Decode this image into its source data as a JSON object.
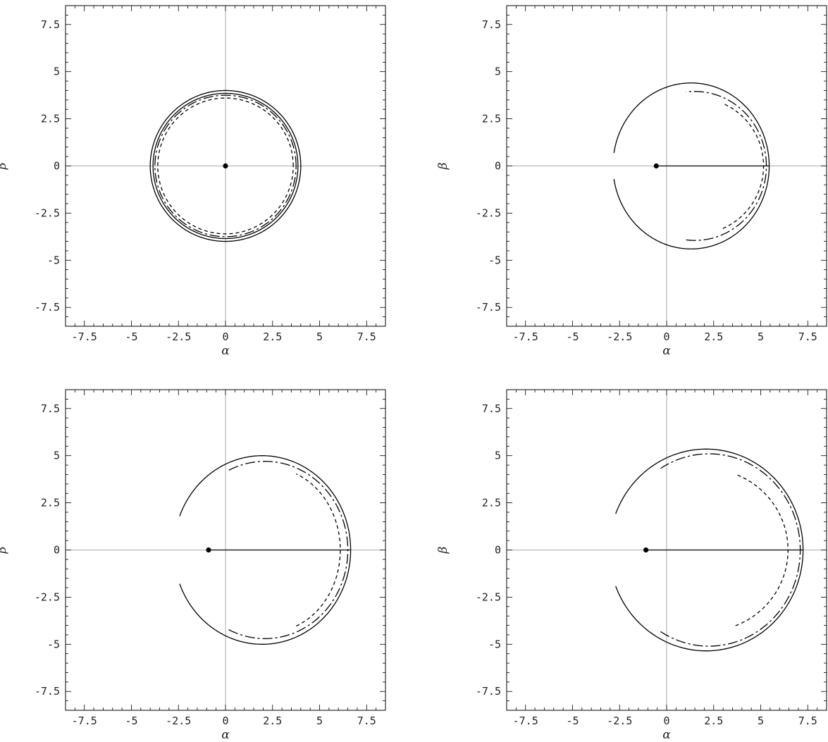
{
  "chart_data": [
    {
      "type": "line",
      "xlabel": "α",
      "ylabel": "β",
      "xlim": [
        -8.5,
        8.5
      ],
      "ylim": [
        -8.5,
        8.5
      ],
      "xticks": [
        "-7.5",
        "-5",
        "-2.5",
        "0",
        "2.5",
        "5",
        "7.5"
      ],
      "yticks": [
        "7.5",
        "5",
        "2.5",
        "0",
        "-2.5",
        "-5",
        "-7.5"
      ],
      "point": [
        0,
        0
      ],
      "segment": null,
      "series": [
        {
          "style": "solid",
          "center": [
            0,
            0
          ],
          "rx": 4.0,
          "ry": 4.0,
          "angles": [
            0,
            360
          ]
        },
        {
          "style": "solid",
          "center": [
            0,
            0
          ],
          "rx": 3.85,
          "ry": 3.85,
          "angles": [
            0,
            360
          ]
        },
        {
          "style": "dash-dot",
          "center": [
            0,
            0
          ],
          "rx": 3.75,
          "ry": 3.75,
          "angles": [
            0,
            360
          ]
        },
        {
          "style": "dashed",
          "center": [
            0,
            0
          ],
          "rx": 3.6,
          "ry": 3.6,
          "angles": [
            0,
            360
          ]
        }
      ]
    },
    {
      "type": "line",
      "xlabel": "α",
      "ylabel": "β",
      "xlim": [
        -8.5,
        8.5
      ],
      "ylim": [
        -8.5,
        8.5
      ],
      "xticks": [
        "-7.5",
        "-5",
        "-2.5",
        "0",
        "2.5",
        "5",
        "7.5"
      ],
      "yticks": [
        "7.5",
        "5",
        "2.5",
        "0",
        "-2.5",
        "-5",
        "-7.5"
      ],
      "point": [
        -0.55,
        0
      ],
      "segment": [
        -0.55,
        5.45
      ],
      "series": [
        {
          "style": "solid",
          "center": [
            1.3,
            0
          ],
          "rx": 4.15,
          "ry": 4.4,
          "angles": [
            -171,
            171
          ]
        },
        {
          "style": "dash-dot",
          "center": [
            1.5,
            0
          ],
          "rx": 3.8,
          "ry": 3.95,
          "angles": [
            -97,
            97
          ]
        },
        {
          "style": "dashed",
          "center": [
            1.6,
            0
          ],
          "rx": 3.55,
          "ry": 3.6,
          "angles": [
            -67,
            67
          ]
        }
      ]
    },
    {
      "type": "line",
      "xlabel": "α",
      "ylabel": "β",
      "xlim": [
        -8.5,
        8.5
      ],
      "ylim": [
        -8.5,
        8.5
      ],
      "xticks": [
        "-7.5",
        "-5",
        "-2.5",
        "0",
        "2.5",
        "5",
        "7.5"
      ],
      "yticks": [
        "7.5",
        "5",
        "2.5",
        "0",
        "-2.5",
        "-5",
        "-7.5"
      ],
      "point": [
        -0.9,
        0
      ],
      "segment": [
        -0.9,
        6.65
      ],
      "series": [
        {
          "style": "solid",
          "center": [
            1.95,
            0
          ],
          "rx": 4.7,
          "ry": 5.0,
          "angles": [
            -159,
            159
          ]
        },
        {
          "style": "dash-dot",
          "center": [
            2.1,
            0
          ],
          "rx": 4.4,
          "ry": 4.7,
          "angles": [
            -116,
            116
          ]
        },
        {
          "style": "dashed",
          "center": [
            2.35,
            0
          ],
          "rx": 3.75,
          "ry": 4.35,
          "angles": [
            -68,
            68
          ]
        }
      ]
    },
    {
      "type": "line",
      "xlabel": "α",
      "ylabel": "β",
      "xlim": [
        -8.5,
        8.5
      ],
      "ylim": [
        -8.5,
        8.5
      ],
      "xticks": [
        "-7.5",
        "-5",
        "-2.5",
        "0",
        "2.5",
        "5",
        "7.5"
      ],
      "yticks": [
        "7.5",
        "5",
        "2.5",
        "0",
        "-2.5",
        "-5",
        "-7.5"
      ],
      "point": [
        -1.1,
        0
      ],
      "segment": [
        -1.1,
        7.25
      ],
      "series": [
        {
          "style": "solid",
          "center": [
            2.1,
            0
          ],
          "rx": 5.15,
          "ry": 5.35,
          "angles": [
            -159,
            159
          ]
        },
        {
          "style": "dash-dot",
          "center": [
            2.25,
            0
          ],
          "rx": 4.85,
          "ry": 5.1,
          "angles": [
            -122,
            122
          ]
        },
        {
          "style": "dashed",
          "center": [
            2.1,
            0
          ],
          "rx": 4.35,
          "ry": 4.3,
          "angles": [
            -69,
            69
          ]
        }
      ]
    }
  ]
}
